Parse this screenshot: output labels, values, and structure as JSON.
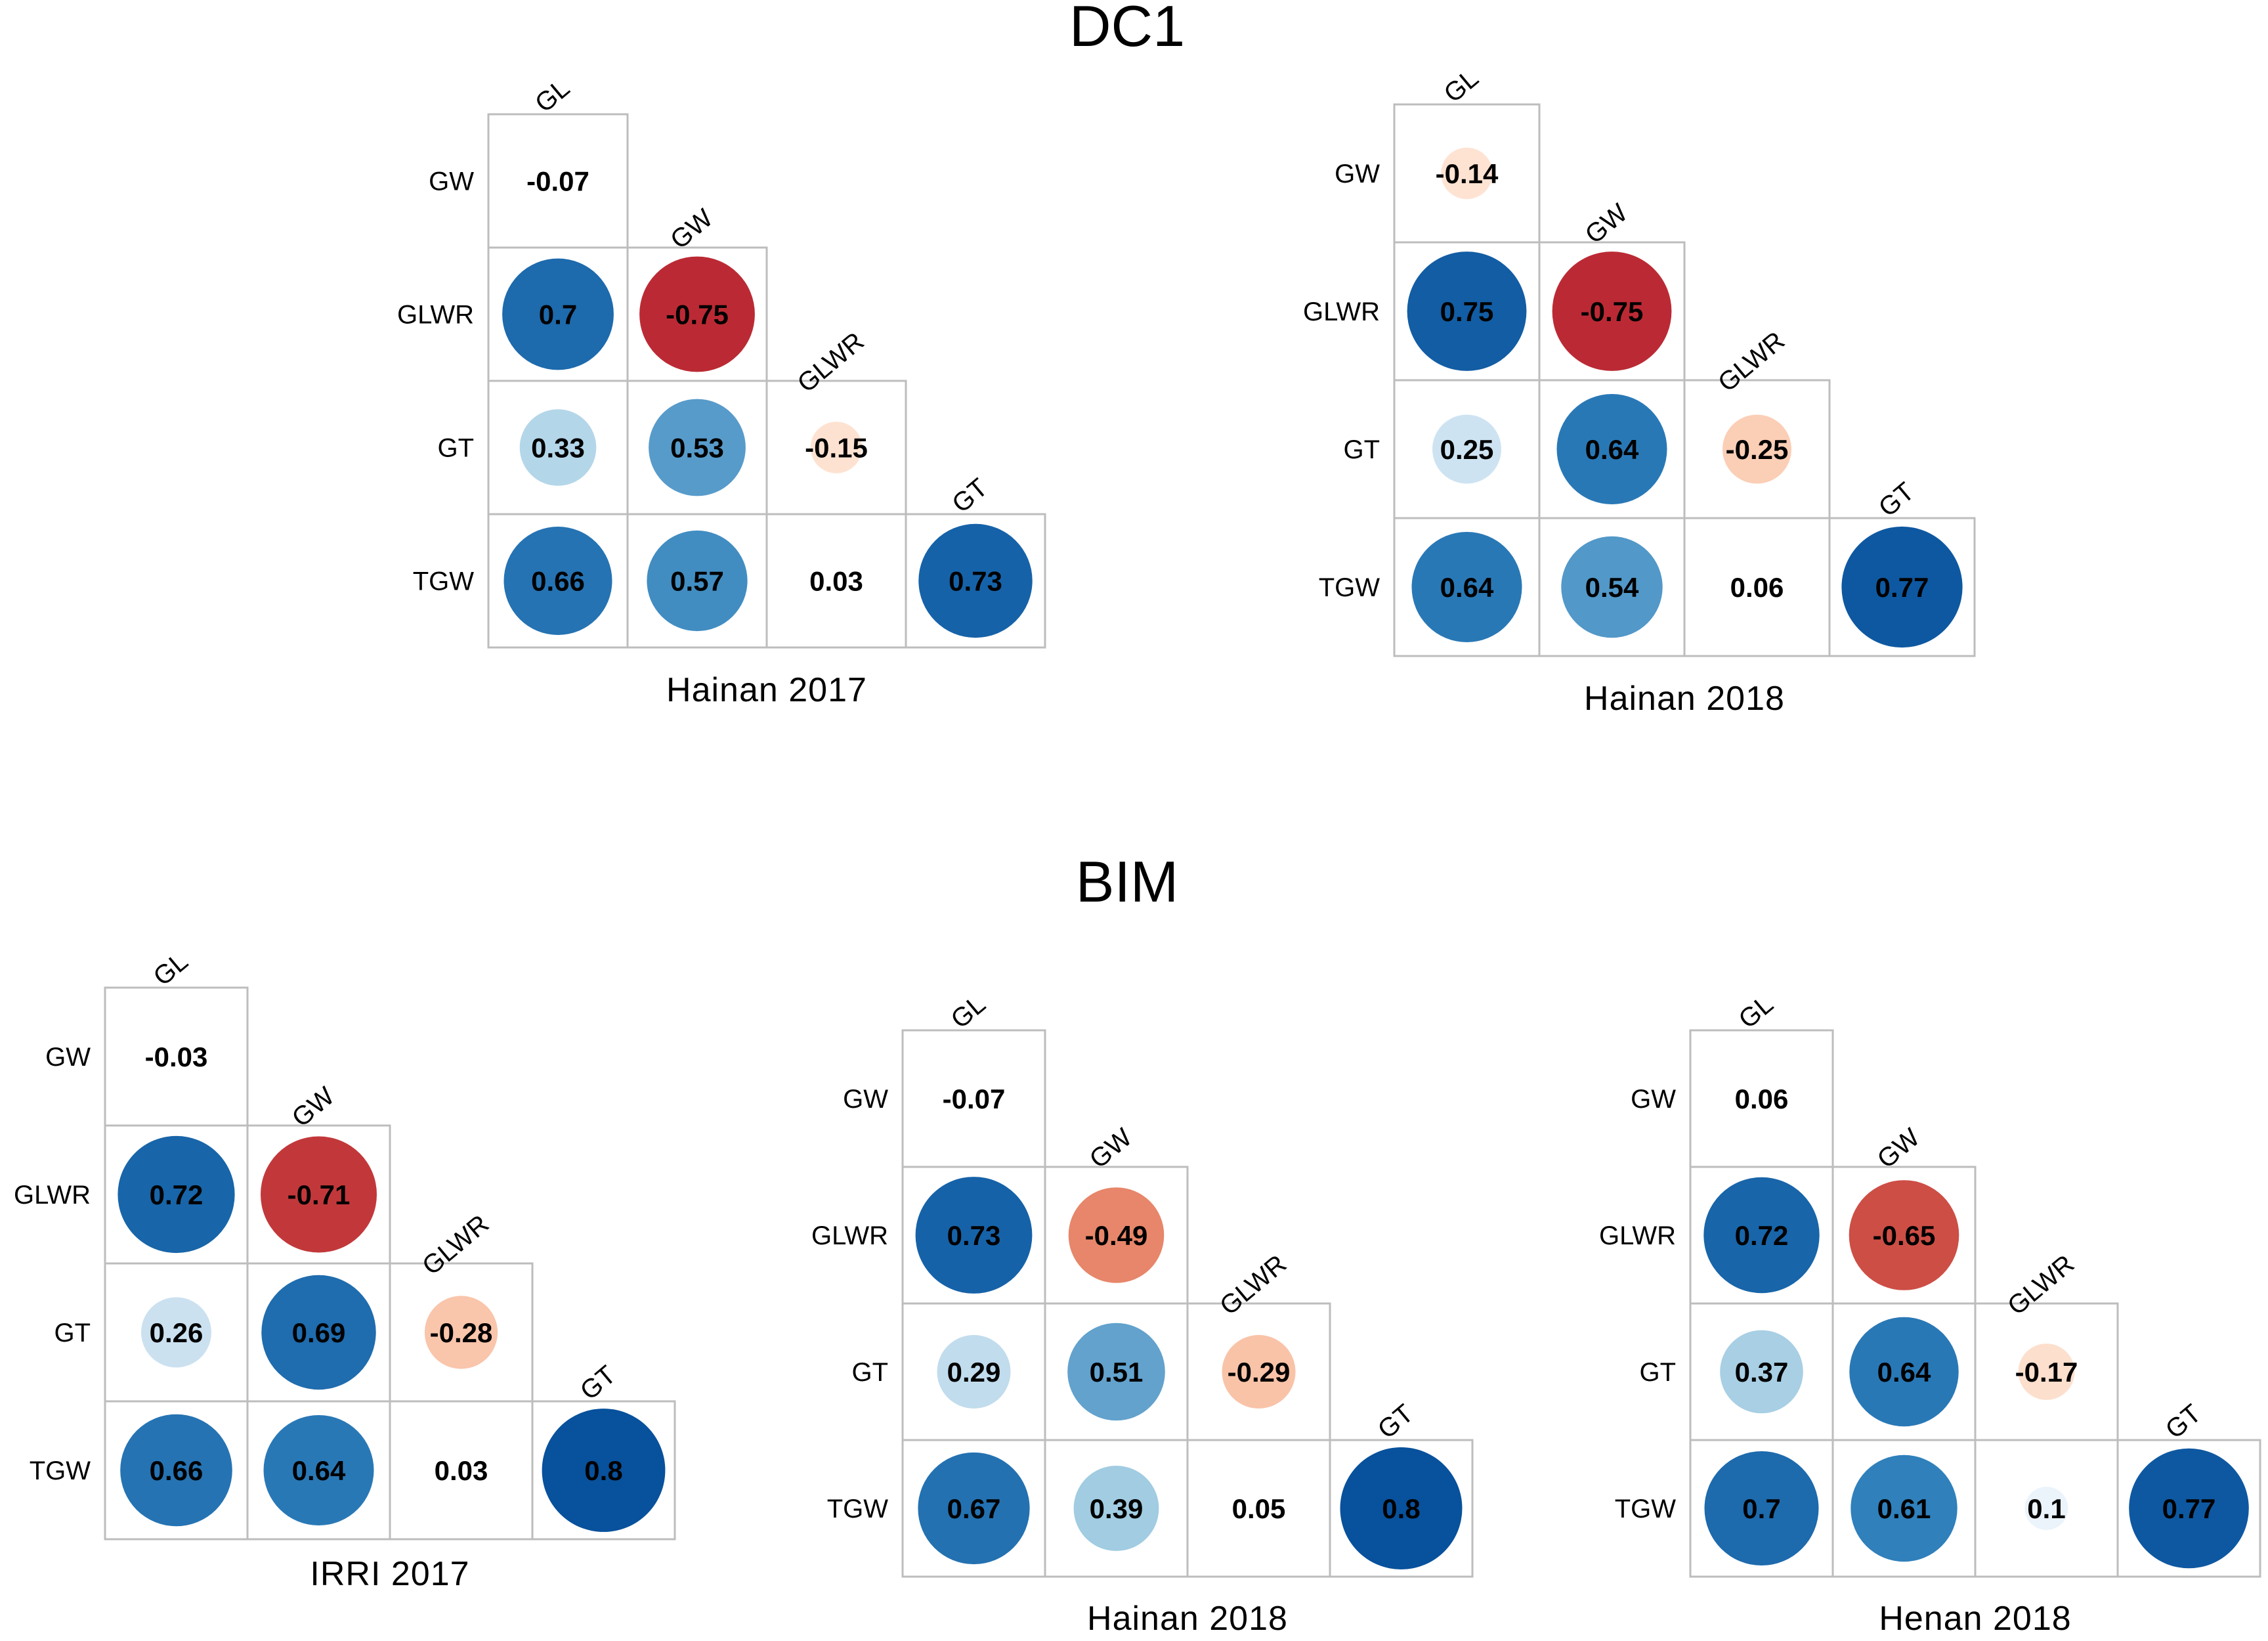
{
  "figure": {
    "groups": [
      {
        "title": "DC1"
      },
      {
        "title": "BIM"
      }
    ]
  },
  "colors": {
    "positive_strong": "#08519c",
    "positive_mid": "#3182bd",
    "positive_light": "#9ecae1",
    "positive_pale": "#deebf7",
    "negative_strong": "#b2182b",
    "negative_mid": "#d6604d",
    "negative_light": "#f4a582",
    "negative_pale": "#fddbc7",
    "cell_border": "#bdbdbd"
  },
  "chart_data": [
    {
      "type": "heatmap",
      "group": "DC1",
      "title": "Hainan  2017",
      "variables": [
        "GL",
        "GW",
        "GLWR",
        "GT",
        "TGW"
      ],
      "row_labels": [
        "GW",
        "GLWR",
        "GT",
        "TGW"
      ],
      "column_labels": [
        "GL",
        "GW",
        "GLWR",
        "GT"
      ],
      "lower_triangle": [
        [
          -0.07
        ],
        [
          0.7,
          -0.75
        ],
        [
          0.33,
          0.53,
          -0.15
        ],
        [
          0.66,
          0.57,
          0.03,
          0.73
        ]
      ],
      "value_labels": [
        [
          "-0.07"
        ],
        [
          "0.7",
          "-0.75"
        ],
        [
          "0.33",
          "0.53",
          "-0.15"
        ],
        [
          "0.66",
          "0.57",
          "0.03",
          "0.73"
        ]
      ],
      "color_range": [
        -1,
        1
      ]
    },
    {
      "type": "heatmap",
      "group": "DC1",
      "title": "Hainan 2018",
      "variables": [
        "GL",
        "GW",
        "GLWR",
        "GT",
        "TGW"
      ],
      "row_labels": [
        "GW",
        "GLWR",
        "GT",
        "TGW"
      ],
      "column_labels": [
        "GL",
        "GW",
        "GLWR",
        "GT"
      ],
      "lower_triangle": [
        [
          -0.14
        ],
        [
          0.75,
          -0.75
        ],
        [
          0.25,
          0.64,
          -0.25
        ],
        [
          0.64,
          0.54,
          0.06,
          0.77
        ]
      ],
      "value_labels": [
        [
          "-0.14"
        ],
        [
          "0.75",
          "-0.75"
        ],
        [
          "0.25",
          "0.64",
          "-0.25"
        ],
        [
          "0.64",
          "0.54",
          "0.06",
          "0.77"
        ]
      ],
      "color_range": [
        -1,
        1
      ]
    },
    {
      "type": "heatmap",
      "group": "BIM",
      "title": "IRRI 2017",
      "variables": [
        "GL",
        "GW",
        "GLWR",
        "GT",
        "TGW"
      ],
      "row_labels": [
        "GW",
        "GLWR",
        "GT",
        "TGW"
      ],
      "column_labels": [
        "GL",
        "GW",
        "GLWR",
        "GT"
      ],
      "lower_triangle": [
        [
          -0.03
        ],
        [
          0.72,
          -0.71
        ],
        [
          0.26,
          0.69,
          -0.28
        ],
        [
          0.66,
          0.64,
          0.03,
          0.8
        ]
      ],
      "value_labels": [
        [
          "-0.03"
        ],
        [
          "0.72",
          "-0.71"
        ],
        [
          "0.26",
          "0.69",
          "-0.28"
        ],
        [
          "0.66",
          "0.64",
          "0.03",
          "0.8"
        ]
      ],
      "color_range": [
        -1,
        1
      ]
    },
    {
      "type": "heatmap",
      "group": "BIM",
      "title": "Hainan 2018",
      "variables": [
        "GL",
        "GW",
        "GLWR",
        "GT",
        "TGW"
      ],
      "row_labels": [
        "GW",
        "GLWR",
        "GT",
        "TGW"
      ],
      "column_labels": [
        "GL",
        "GW",
        "GLWR",
        "GT"
      ],
      "lower_triangle": [
        [
          -0.07
        ],
        [
          0.73,
          -0.49
        ],
        [
          0.29,
          0.51,
          -0.29
        ],
        [
          0.67,
          0.39,
          0.05,
          0.8
        ]
      ],
      "value_labels": [
        [
          "-0.07"
        ],
        [
          "0.73",
          "-0.49"
        ],
        [
          "0.29",
          "0.51",
          "-0.29"
        ],
        [
          "0.67",
          "0.39",
          "0.05",
          "0.8"
        ]
      ],
      "color_range": [
        -1,
        1
      ]
    },
    {
      "type": "heatmap",
      "group": "BIM",
      "title": "Henan 2018",
      "variables": [
        "GL",
        "GW",
        "GLWR",
        "GT",
        "TGW"
      ],
      "row_labels": [
        "GW",
        "GLWR",
        "GT",
        "TGW"
      ],
      "column_labels": [
        "GL",
        "GW",
        "GLWR",
        "GT"
      ],
      "lower_triangle": [
        [
          0.06
        ],
        [
          0.72,
          -0.65
        ],
        [
          0.37,
          0.64,
          -0.17
        ],
        [
          0.7,
          0.61,
          0.1,
          0.77
        ]
      ],
      "value_labels": [
        [
          "0.06"
        ],
        [
          "0.72",
          "-0.65"
        ],
        [
          "0.37",
          "0.64",
          "-0.17"
        ],
        [
          "0.7",
          "0.61",
          "0.1",
          "0.77"
        ]
      ],
      "color_range": [
        -1,
        1
      ]
    }
  ]
}
